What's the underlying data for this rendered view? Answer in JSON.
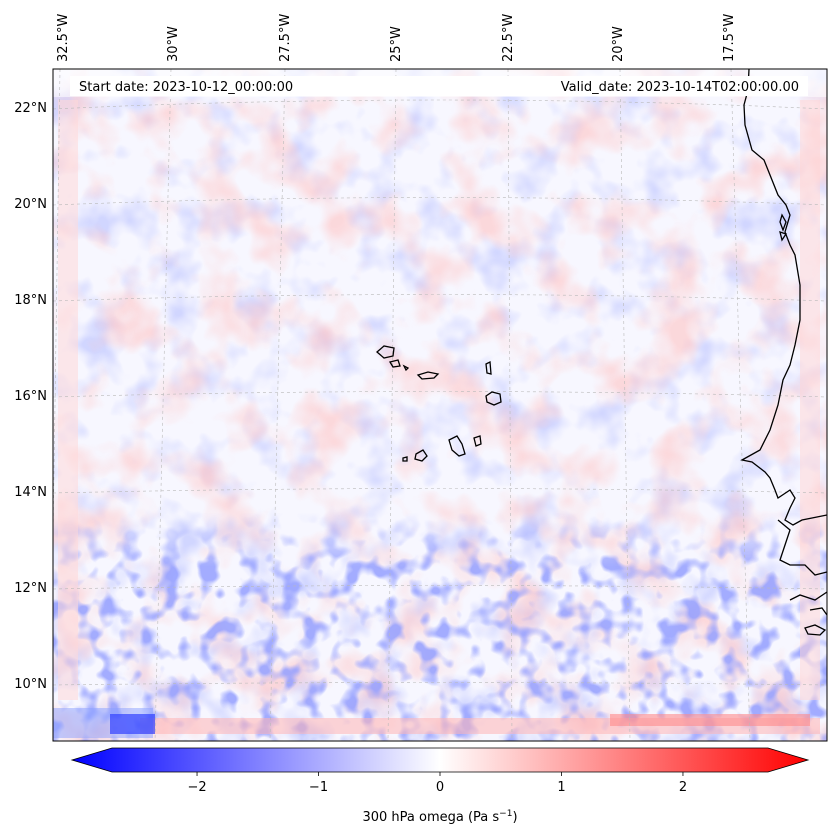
{
  "header": {
    "start_date": "Start date: 2023-10-12_00:00:00",
    "valid_date": "Valid_date: 2023-10-14T02:00:00.00"
  },
  "longitude_labels": [
    "32.5°W",
    "30°W",
    "27.5°W",
    "25°W",
    "22.5°W",
    "20°W",
    "17.5°W"
  ],
  "latitude_labels": [
    "22°N",
    "20°N",
    "18°N",
    "16°N",
    "14°N",
    "12°N",
    "10°N"
  ],
  "colorbar": {
    "ticks": [
      "−2",
      "−1",
      "0",
      "1",
      "2"
    ],
    "tick_values": [
      -2,
      -1,
      0,
      1,
      2
    ],
    "range": [
      -2.7,
      2.7
    ],
    "label_main": "300 hPa omega (Pa s",
    "label_sup": "−1",
    "label_close": ")",
    "colors": {
      "min": "#0000ff",
      "mid": "#ffffff",
      "max": "#ff0000"
    }
  },
  "chart_data": {
    "type": "heatmap",
    "title": "",
    "variable": "300 hPa omega",
    "units": "Pa s−1",
    "lon_range": [
      -33,
      -16
    ],
    "lat_range": [
      9,
      22.5
    ],
    "colormap": "bwr",
    "vmin": -2.7,
    "vmax": 2.7
  }
}
